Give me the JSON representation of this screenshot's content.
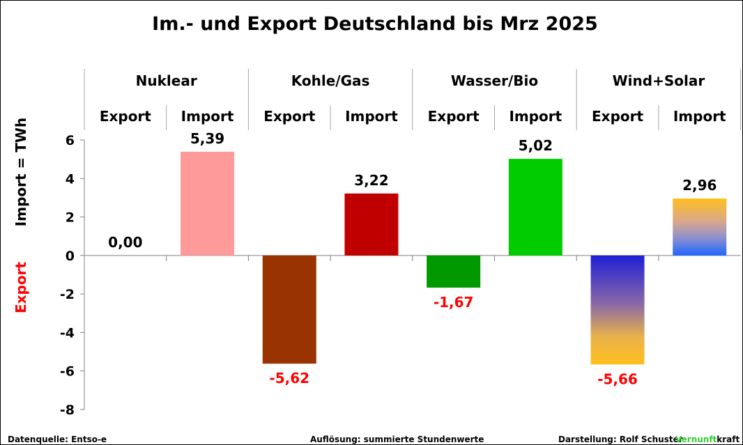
{
  "chart_data": {
    "type": "bar",
    "title": "Im.- und Export Deutschland  bis Mrz 2025",
    "ylabel_positive": "Import = TWh",
    "ylabel_negative": "Export",
    "ylim": [
      -8,
      6
    ],
    "yticks": [
      "6",
      "4",
      "2",
      "0",
      "-2",
      "-4",
      "-6",
      "-8"
    ],
    "ytick_values": [
      6,
      4,
      2,
      0,
      -2,
      -4,
      -6,
      -8
    ],
    "groups": [
      "Nuklear",
      "Kohle/Gas",
      "Wasser/Bio",
      "Wind+Solar"
    ],
    "categories": [
      "Export",
      "Import",
      "Export",
      "Import",
      "Export",
      "Import",
      "Export",
      "Import"
    ],
    "values": [
      0.0,
      5.39,
      -5.62,
      3.22,
      -1.67,
      5.02,
      -5.66,
      2.96
    ],
    "value_labels": [
      "0,00",
      "5,39",
      "-5,62",
      "3,22",
      "-1,67",
      "5,02",
      "-5,66",
      "2,96"
    ],
    "colors": [
      "#ffffff",
      "#ff9a9a",
      "#993300",
      "#c00000",
      "#009900",
      "#00cc00",
      "gradient-blue-to-gold",
      "gradient-gold-to-blue"
    ],
    "positive_label_color": "#000000",
    "negative_label_color": "#ff0000"
  },
  "footer": {
    "source": "Datenquelle: Entso-e",
    "resolution": "Auflösung: summierte Stundenwerte",
    "author": "Darstellung:  Rolf Schuster",
    "brand_green": "Vernunft",
    "brand_black": "kraft",
    "brand_color": "#33cc33"
  }
}
